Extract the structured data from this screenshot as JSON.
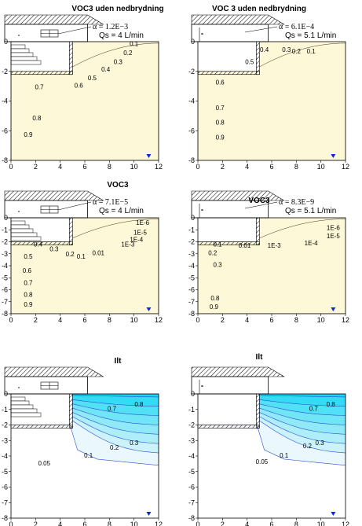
{
  "axes": {
    "xticks": [
      "0",
      "2",
      "4",
      "6",
      "8",
      "10",
      "12"
    ],
    "yticks": [
      "0",
      "-1",
      "-2",
      "-3",
      "-4",
      "-5",
      "-6",
      "-7",
      "-8"
    ],
    "yticks_sparse": [
      "0",
      "-2",
      "-4",
      "-6",
      "-8"
    ]
  },
  "colors": {
    "dark": "#8a643e",
    "light": "#fdf8d8",
    "cyan": "#15d6f4",
    "pale": "#eaf8fd",
    "contour_dark": "#4a3218",
    "contour_blue": "#2a4fd0",
    "marker": "#0a2ad8"
  },
  "panels": [
    {
      "id": "p1",
      "title": "VOC3 uden nedbrydning",
      "alpha": "α = 1.2E−3",
      "qs": "Qs = 4 L/min",
      "scheme": "brown",
      "yticks_mode": "sparse",
      "contour_labels": [
        "0.1",
        "0.2",
        "0.3",
        "0.4",
        "0.5",
        "0.6",
        "0.7",
        "0.8",
        "0.9"
      ]
    },
    {
      "id": "p2",
      "title": "VOC 3 uden nedbrydning",
      "alpha": "α = 6.1E−4",
      "qs": "Qs = 5.1 L/min",
      "scheme": "brown",
      "yticks_mode": "sparse",
      "contour_labels": [
        "0.1",
        "0.2",
        "0.3",
        "0.4",
        "0.5",
        "0.6",
        "0.7",
        "0.8",
        "0.9"
      ]
    },
    {
      "id": "p3",
      "title": "VOC3",
      "alpha": "α = 7.1E−5",
      "qs": "Qs = 4 L/min",
      "scheme": "brown",
      "yticks_mode": "full",
      "contour_labels": [
        "1E-6",
        "1E-5",
        "1E-4",
        "1E-3",
        "0.01",
        "0.1",
        "0.2",
        "0.3",
        "0.4",
        "0.5",
        "0.6",
        "0.7",
        "0.8",
        "0.9"
      ]
    },
    {
      "id": "p4",
      "title": "VOC3",
      "alpha": "α = 8.3E−9",
      "qs": "Qs = 5.1 L/min",
      "scheme": "brown",
      "yticks_mode": "full",
      "contour_labels": [
        "1E-6",
        "1E-5",
        "1E-4",
        "1E-3",
        "0.01",
        "0.1",
        "0.2",
        "0.3",
        "0.8",
        "0.9"
      ]
    },
    {
      "id": "p5",
      "title": "Ilt",
      "alpha": "",
      "qs": "",
      "scheme": "blue",
      "yticks_mode": "full",
      "contour_labels": [
        "0.8",
        "0.7",
        "0.3",
        "0.2",
        "0.1",
        "0.05"
      ]
    },
    {
      "id": "p6",
      "title": "Ilt",
      "alpha": "",
      "qs": "",
      "scheme": "blue",
      "yticks_mode": "full",
      "contour_labels": [
        "0.8",
        "0.7",
        "0.3",
        "0.2",
        "0.1",
        "0.05"
      ]
    }
  ]
}
